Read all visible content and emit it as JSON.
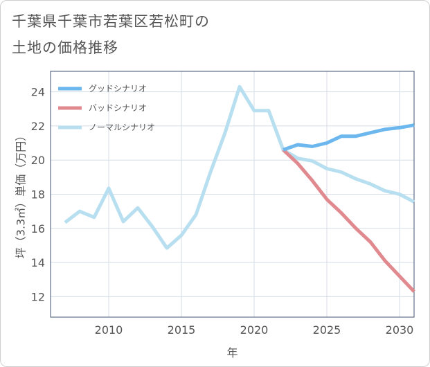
{
  "title": [
    "千葉県千葉市若葉区若松町の",
    "土地の価格推移"
  ],
  "chart_data": {
    "type": "line",
    "xlabel": "年",
    "ylabel": "坪（3.3㎡）単価（万円）",
    "xlim": [
      2006,
      2031
    ],
    "ylim": [
      10.8,
      25.2
    ],
    "xticks": [
      2010,
      2015,
      2020,
      2025,
      2030
    ],
    "yticks": [
      12,
      14,
      16,
      18,
      20,
      22,
      24
    ],
    "grid": true,
    "legend_position": "top-left",
    "series": [
      {
        "name": "グッドシナリオ",
        "color": "#6cb8ee",
        "x": [
          2022,
          2023,
          2024,
          2025,
          2026,
          2027,
          2028,
          2029,
          2030,
          2031
        ],
        "values": [
          20.6,
          20.9,
          20.8,
          21.0,
          21.4,
          21.4,
          21.6,
          21.8,
          21.9,
          22.05
        ]
      },
      {
        "name": "バッドシナリオ",
        "color": "#e08a8f",
        "x": [
          2022,
          2023,
          2024,
          2025,
          2026,
          2027,
          2028,
          2029,
          2030,
          2031
        ],
        "values": [
          20.6,
          19.8,
          18.8,
          17.7,
          16.9,
          16.0,
          15.2,
          14.1,
          13.2,
          12.3
        ]
      },
      {
        "name": "ノーマルシナリオ",
        "color": "#b7dff0",
        "x": [
          2007,
          2008,
          2009,
          2010,
          2011,
          2012,
          2013,
          2014,
          2015,
          2016,
          2017,
          2018,
          2019,
          2020,
          2021,
          2022,
          2023,
          2024,
          2025,
          2026,
          2027,
          2028,
          2029,
          2030,
          2031
        ],
        "values": [
          16.35,
          17.0,
          16.65,
          18.35,
          16.4,
          17.2,
          16.1,
          14.85,
          15.6,
          16.8,
          19.3,
          21.6,
          24.3,
          22.9,
          22.9,
          20.6,
          20.1,
          19.95,
          19.5,
          19.3,
          18.9,
          18.6,
          18.2,
          18.0,
          17.55
        ]
      }
    ]
  }
}
